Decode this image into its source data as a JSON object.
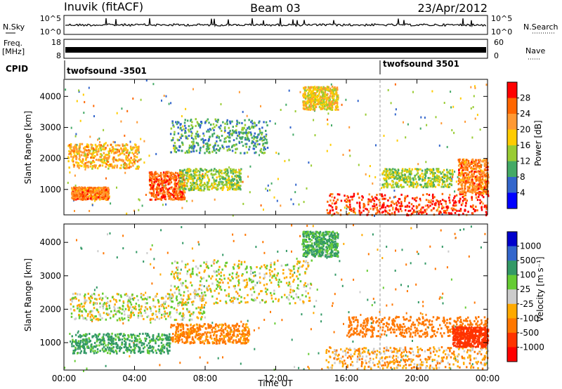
{
  "header": {
    "site": "Inuvik (fitACF)",
    "beam": "Beam 03",
    "date": "23/Apr/2012"
  },
  "strips": {
    "nsky": {
      "label": "N.Sky",
      "ticks": [
        "10^5",
        "10^0"
      ]
    },
    "nsearch": {
      "label": "N.Search",
      "ticks": [
        "10^5",
        "10^0"
      ]
    },
    "freq": {
      "label_lines": [
        "Freq.",
        "[MHz]"
      ],
      "ticks": [
        "18",
        "8"
      ]
    },
    "nave": {
      "label": "Nave",
      "ticks": [
        "60",
        "0"
      ]
    },
    "cpid": {
      "label": "CPID",
      "segments": [
        "twofsound -3501",
        "twofsound 3501"
      ]
    }
  },
  "chart_data": [
    {
      "type": "heatmap",
      "panel": "power",
      "ylabel": "Slant Range [km]",
      "xlabel": "",
      "x_ticks": [
        "00:00",
        "04:00",
        "08:00",
        "12:00",
        "16:00",
        "20:00",
        "00:00"
      ],
      "xlim_hours": [
        0,
        24
      ],
      "y_ticks": [
        1000,
        2000,
        3000,
        4000
      ],
      "ylim": [
        180,
        4550
      ],
      "colorbar": {
        "label": "Power [dB]",
        "ticks": [
          "28",
          "24",
          "20",
          "16",
          "12",
          "8",
          "4"
        ],
        "colors": [
          "#ff0000",
          "#ff6600",
          "#ff9933",
          "#ffcc00",
          "#99cc33",
          "#44aa66",
          "#3366cc",
          "#0000ff"
        ]
      },
      "features": [
        {
          "t0": 0.2,
          "t1": 4.2,
          "r0": 1700,
          "r1": 2500,
          "value": 20
        },
        {
          "t0": 0.4,
          "t1": 2.5,
          "r0": 700,
          "r1": 1100,
          "value": 24
        },
        {
          "t0": 4.8,
          "t1": 6.8,
          "r0": 700,
          "r1": 1600,
          "value": 26
        },
        {
          "t0": 6.5,
          "t1": 10.0,
          "r0": 1000,
          "r1": 1700,
          "value": 14
        },
        {
          "t0": 14.8,
          "t1": 24.0,
          "r0": 200,
          "r1": 900,
          "value": 28
        },
        {
          "t0": 22.3,
          "t1": 24.0,
          "r0": 900,
          "r1": 2000,
          "value": 24
        },
        {
          "t0": 6.0,
          "t1": 11.5,
          "r0": 2200,
          "r1": 3300,
          "value": 10
        },
        {
          "t0": 13.5,
          "t1": 15.5,
          "r0": 3600,
          "r1": 4350,
          "value": 18
        },
        {
          "t0": 18.0,
          "t1": 22.0,
          "r0": 1100,
          "r1": 1700,
          "value": 14
        }
      ]
    },
    {
      "type": "heatmap",
      "panel": "velocity",
      "ylabel": "Slant Range [km]",
      "xlabel": "Time UT",
      "x_ticks": [
        "00:00",
        "04:00",
        "08:00",
        "12:00",
        "16:00",
        "20:00",
        "00:00"
      ],
      "xlim_hours": [
        0,
        24
      ],
      "y_ticks": [
        1000,
        2000,
        3000,
        4000
      ],
      "ylim": [
        180,
        4550
      ],
      "colorbar": {
        "label": "Velocity [m s⁻¹]",
        "ticks": [
          "1000",
          "500",
          "100",
          "25",
          "-25",
          "-100",
          "-500",
          "-1000"
        ],
        "colors": [
          "#0000cc",
          "#3366cc",
          "#339966",
          "#66cc33",
          "#cccccc",
          "#ffaa00",
          "#ff7700",
          "#ff3300",
          "#ff0000"
        ]
      },
      "features": [
        {
          "t0": 0.2,
          "t1": 8.0,
          "r0": 1700,
          "r1": 2500,
          "value": 0
        },
        {
          "t0": 0.4,
          "t1": 6.0,
          "r0": 700,
          "r1": 1300,
          "value": 150
        },
        {
          "t0": 6.0,
          "t1": 10.5,
          "r0": 1000,
          "r1": 1600,
          "value": -150
        },
        {
          "t0": 14.8,
          "t1": 24.0,
          "r0": 250,
          "r1": 900,
          "value": -80
        },
        {
          "t0": 16.0,
          "t1": 24.0,
          "r0": 1200,
          "r1": 1800,
          "value": -200
        },
        {
          "t0": 22.0,
          "t1": 24.0,
          "r0": 900,
          "r1": 1500,
          "value": -600
        },
        {
          "t0": 6.0,
          "t1": 14.0,
          "r0": 2200,
          "r1": 3500,
          "value": 0
        },
        {
          "t0": 13.5,
          "t1": 15.5,
          "r0": 3600,
          "r1": 4350,
          "value": 120
        }
      ]
    }
  ]
}
